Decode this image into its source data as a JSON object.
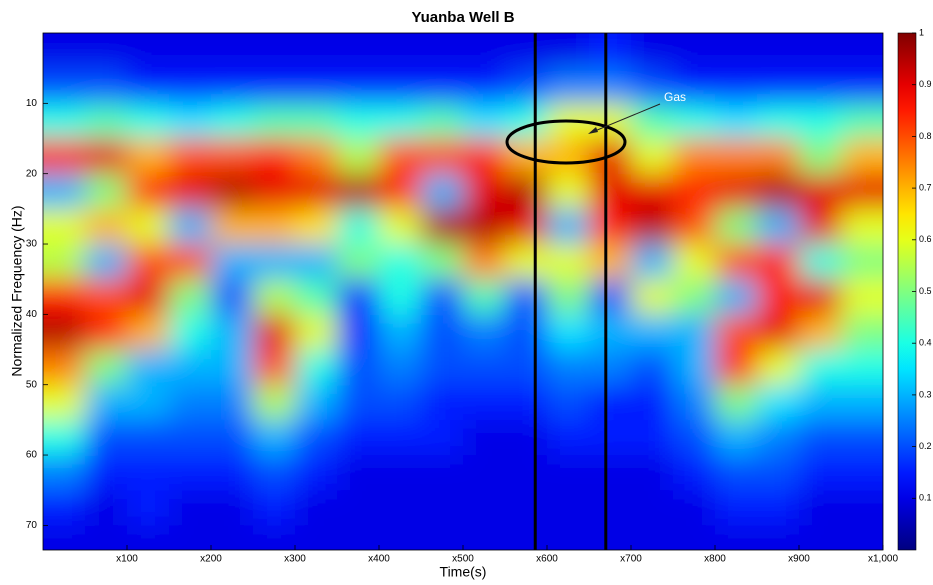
{
  "chart_data": {
    "type": "heatmap",
    "title": "Yuanba Well B",
    "xlabel": "Time(s)",
    "ylabel": "Normalized Frequency (Hz)",
    "annotation": "Gas",
    "x": [
      25,
      75,
      125,
      175,
      225,
      275,
      325,
      375,
      425,
      475,
      525,
      575,
      625,
      675,
      725,
      775,
      825,
      875,
      925,
      975
    ],
    "y": [
      2.5,
      7.5,
      12.5,
      17.5,
      22.5,
      27.5,
      32.5,
      37.5,
      42.5,
      47.5,
      52.5,
      57.5,
      62.5,
      67.5,
      72.5
    ],
    "z": [
      [
        0.1,
        0.1,
        0.1,
        0.1,
        0.1,
        0.1,
        0.1,
        0.1,
        0.1,
        0.1,
        0.1,
        0.1,
        0.1,
        0.15,
        0.1,
        0.1,
        0.1,
        0.1,
        0.1,
        0.1
      ],
      [
        0.2,
        0.2,
        0.15,
        0.15,
        0.15,
        0.15,
        0.15,
        0.15,
        0.15,
        0.15,
        0.15,
        0.2,
        0.25,
        0.25,
        0.2,
        0.15,
        0.15,
        0.15,
        0.15,
        0.15
      ],
      [
        0.4,
        0.45,
        0.4,
        0.35,
        0.4,
        0.45,
        0.45,
        0.4,
        0.4,
        0.45,
        0.35,
        0.4,
        0.6,
        0.6,
        0.45,
        0.4,
        0.35,
        0.4,
        0.4,
        0.45
      ],
      [
        0.85,
        0.9,
        0.7,
        0.8,
        0.8,
        0.85,
        0.75,
        0.55,
        0.8,
        0.8,
        0.85,
        0.7,
        0.7,
        0.9,
        0.6,
        0.75,
        0.75,
        0.75,
        0.5,
        0.7
      ],
      [
        0.3,
        0.5,
        0.85,
        0.9,
        0.95,
        0.9,
        0.9,
        0.95,
        0.85,
        0.3,
        0.9,
        0.95,
        0.6,
        0.9,
        0.9,
        0.85,
        0.9,
        0.95,
        0.9,
        0.9
      ],
      [
        0.6,
        0.7,
        0.6,
        0.3,
        0.7,
        0.7,
        0.65,
        0.4,
        0.6,
        0.95,
        0.95,
        0.9,
        0.3,
        0.85,
        0.95,
        0.8,
        0.5,
        0.3,
        0.9,
        0.6
      ],
      [
        0.55,
        0.3,
        0.8,
        0.8,
        0.3,
        0.3,
        0.3,
        0.5,
        0.4,
        0.5,
        0.75,
        0.6,
        0.6,
        0.7,
        0.3,
        0.6,
        0.8,
        0.85,
        0.4,
        0.5
      ],
      [
        0.85,
        0.8,
        0.9,
        0.5,
        0.2,
        0.55,
        0.45,
        0.15,
        0.4,
        0.2,
        0.45,
        0.2,
        0.5,
        0.2,
        0.6,
        0.5,
        0.3,
        0.85,
        0.9,
        0.6
      ],
      [
        0.95,
        0.85,
        0.7,
        0.4,
        0.3,
        0.9,
        0.6,
        0.15,
        0.3,
        0.2,
        0.25,
        0.2,
        0.35,
        0.3,
        0.3,
        0.3,
        0.8,
        0.9,
        0.7,
        0.5
      ],
      [
        0.75,
        0.5,
        0.3,
        0.3,
        0.3,
        0.8,
        0.4,
        0.2,
        0.25,
        0.2,
        0.2,
        0.2,
        0.25,
        0.25,
        0.2,
        0.3,
        0.85,
        0.6,
        0.4,
        0.4
      ],
      [
        0.6,
        0.3,
        0.3,
        0.25,
        0.25,
        0.55,
        0.3,
        0.2,
        0.2,
        0.15,
        0.15,
        0.15,
        0.2,
        0.15,
        0.15,
        0.25,
        0.5,
        0.35,
        0.3,
        0.3
      ],
      [
        0.4,
        0.2,
        0.2,
        0.2,
        0.2,
        0.3,
        0.2,
        0.15,
        0.15,
        0.15,
        0.1,
        0.1,
        0.15,
        0.15,
        0.15,
        0.2,
        0.3,
        0.25,
        0.2,
        0.2
      ],
      [
        0.25,
        0.15,
        0.15,
        0.15,
        0.15,
        0.2,
        0.15,
        0.1,
        0.1,
        0.1,
        0.1,
        0.1,
        0.1,
        0.1,
        0.1,
        0.15,
        0.2,
        0.2,
        0.15,
        0.15
      ],
      [
        0.15,
        0.1,
        0.15,
        0.1,
        0.1,
        0.15,
        0.1,
        0.1,
        0.1,
        0.1,
        0.1,
        0.1,
        0.1,
        0.1,
        0.1,
        0.1,
        0.15,
        0.15,
        0.1,
        0.1
      ],
      [
        0.1,
        0.1,
        0.1,
        0.1,
        0.1,
        0.1,
        0.1,
        0.1,
        0.1,
        0.1,
        0.1,
        0.1,
        0.1,
        0.1,
        0.1,
        0.1,
        0.1,
        0.1,
        0.1,
        0.1
      ]
    ],
    "colormap": "jet",
    "xlim": [
      0,
      1000
    ],
    "xticks": [
      {
        "value": 100,
        "label": "x100"
      },
      {
        "value": 200,
        "label": "x200"
      },
      {
        "value": 300,
        "label": "x300"
      },
      {
        "value": 400,
        "label": "x400"
      },
      {
        "value": 500,
        "label": "x500"
      },
      {
        "value": 600,
        "label": "x600"
      },
      {
        "value": 700,
        "label": "x700"
      },
      {
        "value": 800,
        "label": "x800"
      },
      {
        "value": 900,
        "label": "x900"
      },
      {
        "value": 1000,
        "label": "x1,000"
      }
    ],
    "ylim": [
      0,
      73.5
    ],
    "y_inverted": true,
    "yticks": [
      10,
      20,
      30,
      40,
      50,
      60,
      70
    ],
    "clim": [
      0,
      1
    ],
    "cticks": [
      0.1,
      0.2,
      0.3,
      0.4,
      0.5,
      0.6,
      0.7,
      0.8,
      0.9,
      1
    ],
    "vlines": [
      586,
      670
    ]
  }
}
